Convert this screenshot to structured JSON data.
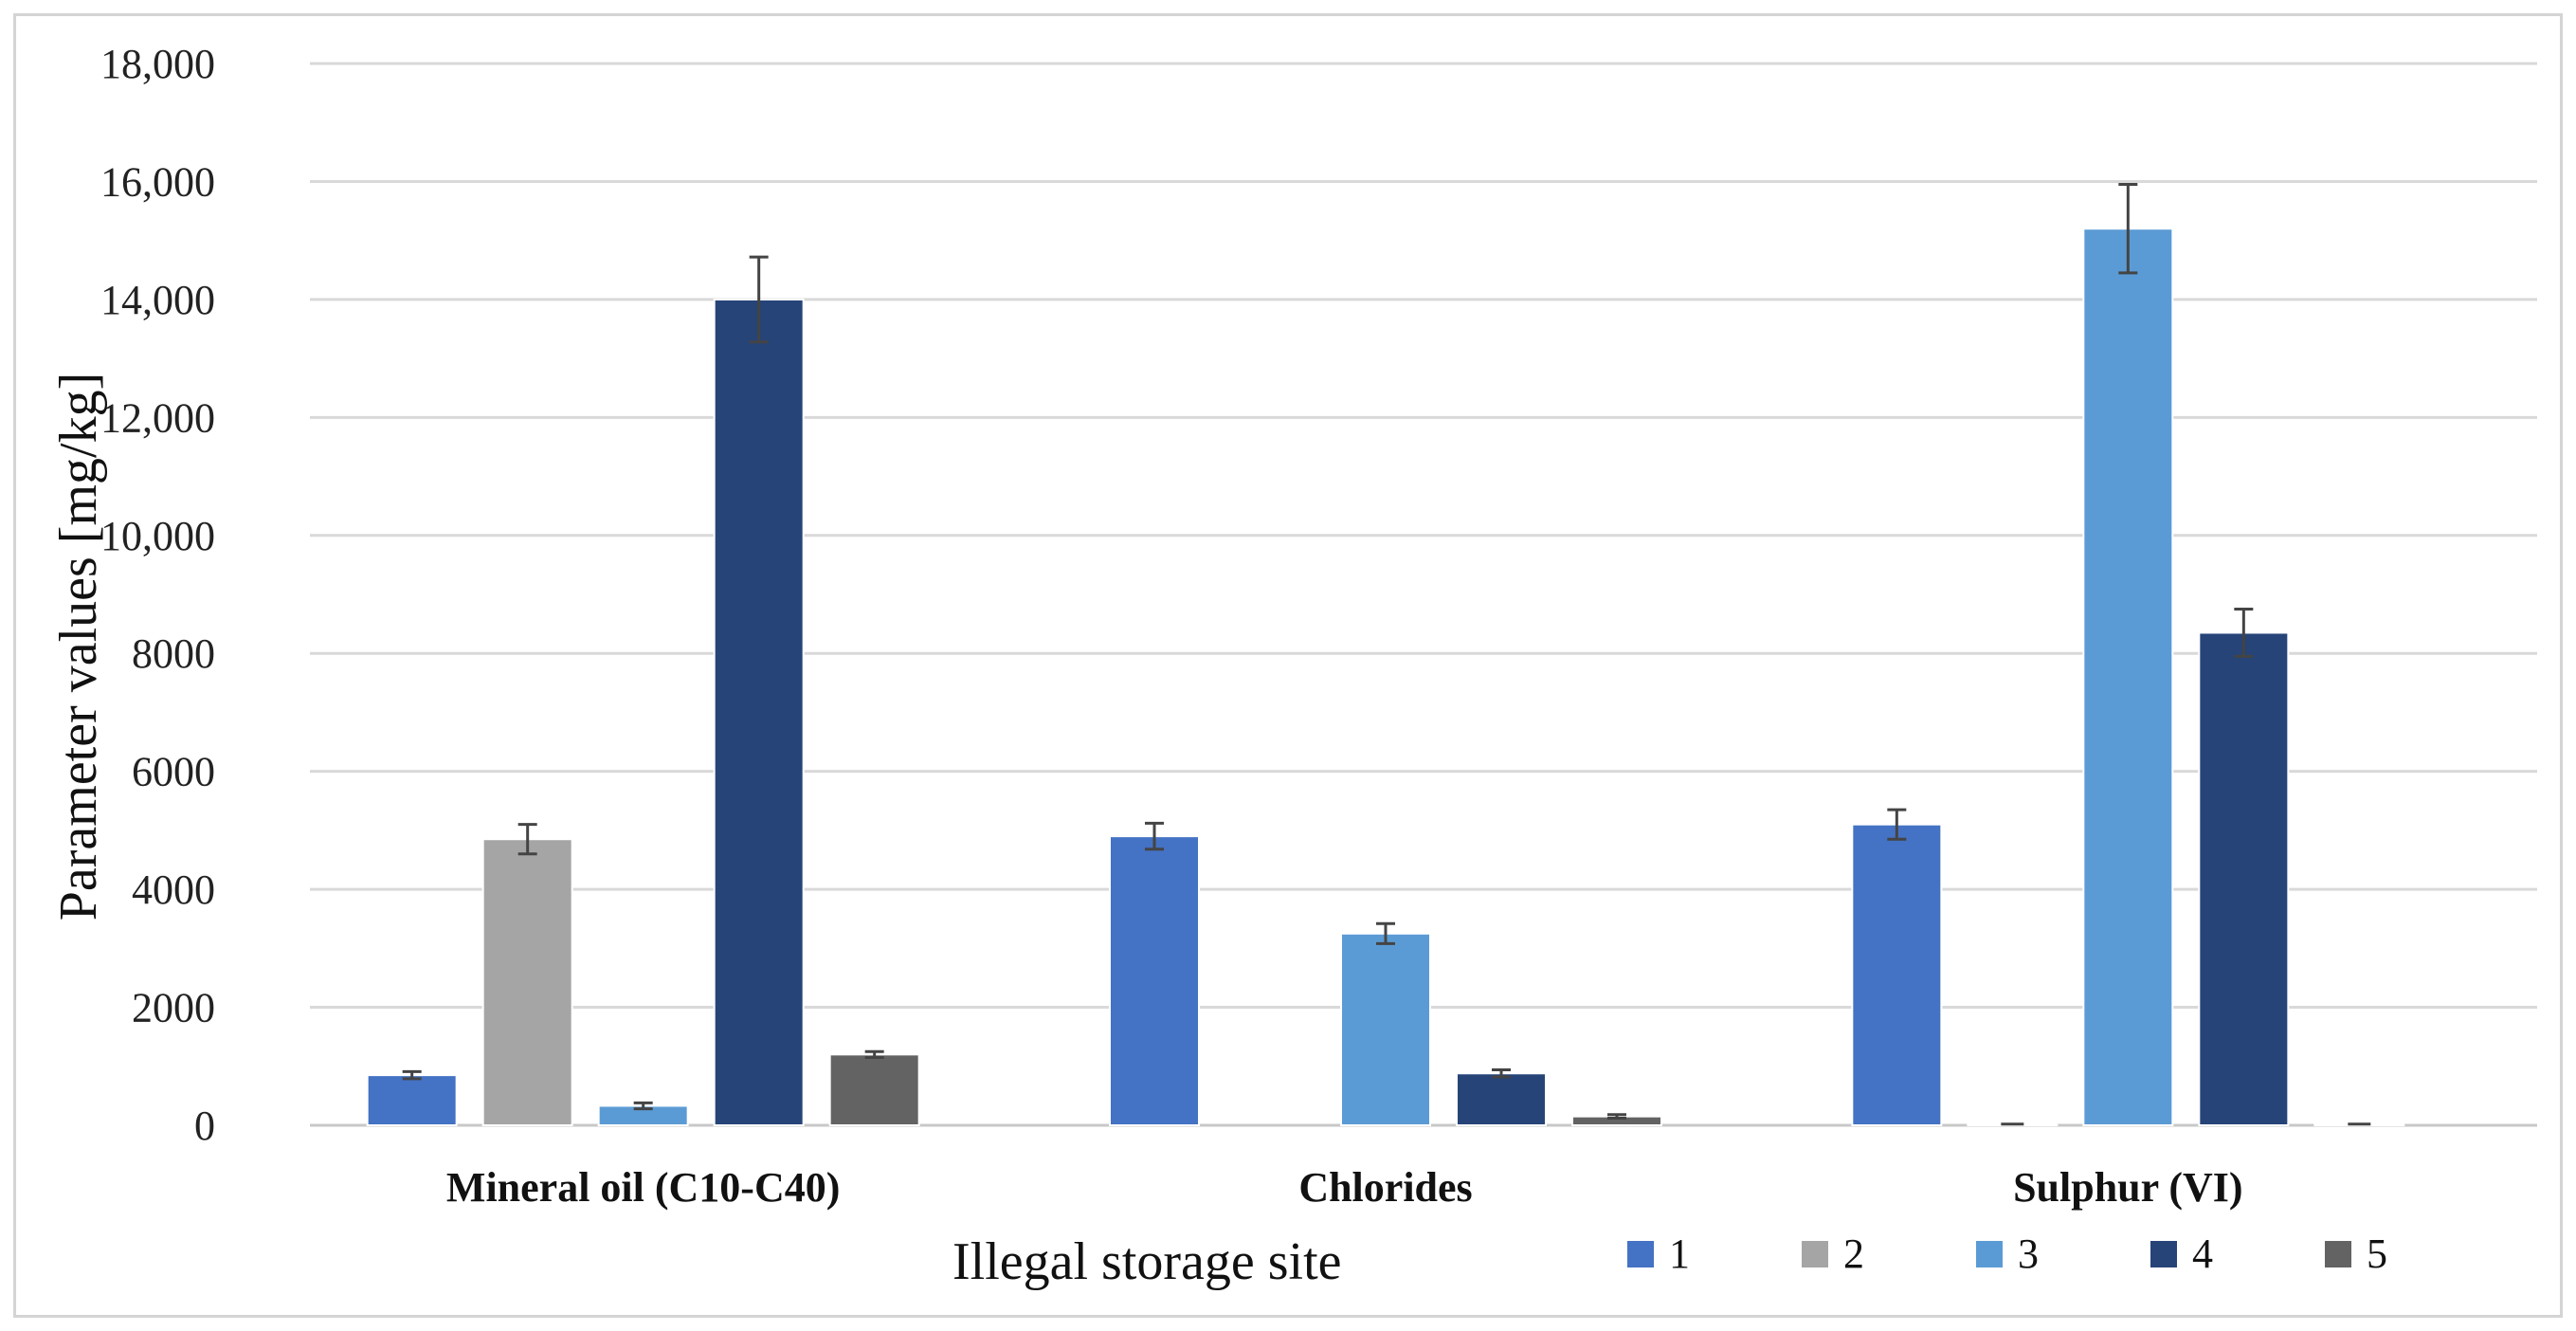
{
  "chart_data": {
    "type": "bar",
    "categories": [
      "Mineral oil (C10-C40)",
      "Chlorides",
      "Sulphur (VI)"
    ],
    "ylabel": "Parameter values [mg/kg]",
    "legend_title": "Illegal storage site",
    "ylim": [
      0,
      18000
    ],
    "yticks": [
      0,
      2000,
      4000,
      6000,
      8000,
      10000,
      12000,
      14000,
      16000,
      18000
    ],
    "ytick_labels": [
      "0",
      "2000",
      "4000",
      "6000",
      "8000",
      "10,000",
      "12,000",
      "14,000",
      "16,000",
      "18,000"
    ],
    "grid": true,
    "legend_position": "bottom-right",
    "series": [
      {
        "name": "1",
        "color": "#4472c4",
        "values": [
          850,
          4900,
          5100
        ],
        "errors": [
          60,
          220,
          250
        ]
      },
      {
        "name": "2",
        "color": "#a5a5a5",
        "values": [
          4850,
          0,
          20
        ],
        "errors": [
          250,
          0,
          0
        ]
      },
      {
        "name": "3",
        "color": "#5b9bd5",
        "values": [
          330,
          3250,
          15200
        ],
        "errors": [
          50,
          170,
          750
        ]
      },
      {
        "name": "4",
        "color": "#264478",
        "values": [
          14000,
          880,
          8350
        ],
        "errors": [
          720,
          60,
          400
        ]
      },
      {
        "name": "5",
        "color": "#636363",
        "values": [
          1200,
          150,
          20
        ],
        "errors": [
          50,
          30,
          0
        ]
      }
    ]
  }
}
